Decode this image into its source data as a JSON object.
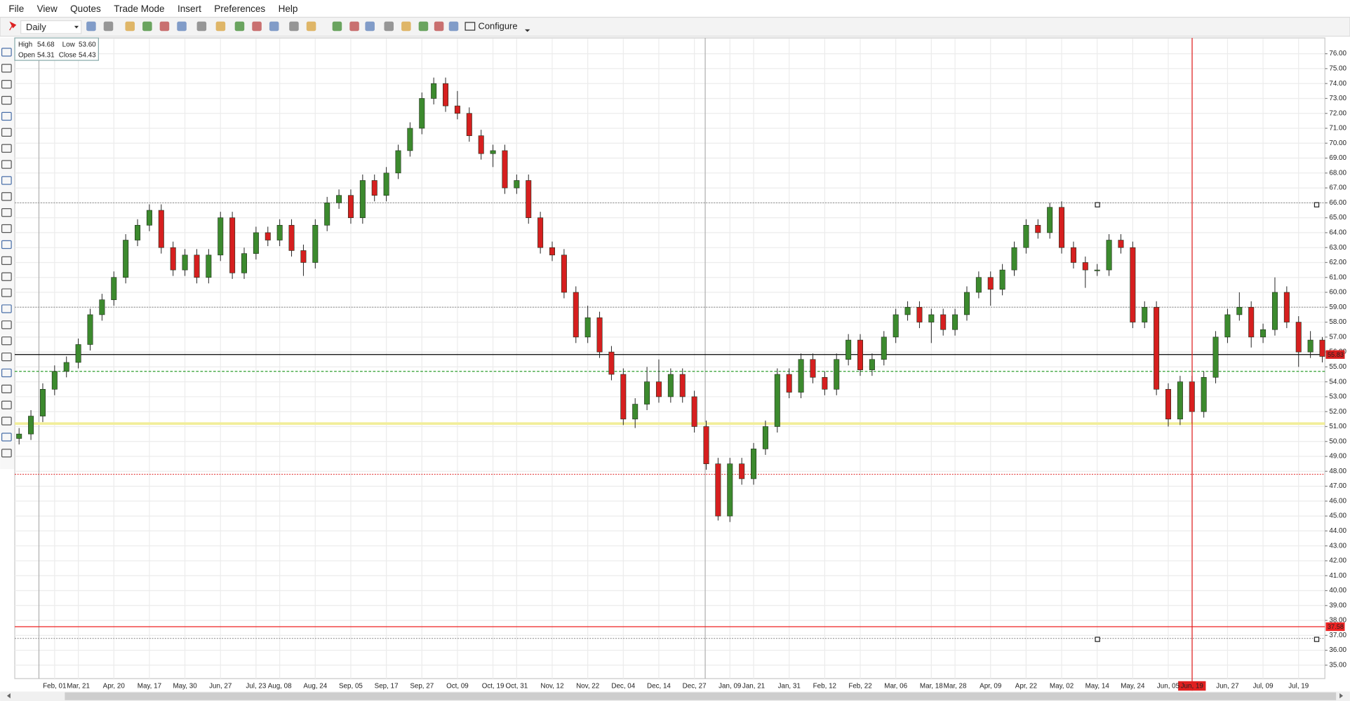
{
  "menu": [
    "File",
    "View",
    "Quotes",
    "Trade Mode",
    "Insert",
    "Preferences",
    "Help"
  ],
  "toolbar": {
    "timeframe": "Daily",
    "configure": "Configure"
  },
  "info_box": {
    "high_label": "High",
    "high": "54.68",
    "low_label": "Low",
    "low": "53.60",
    "open_label": "Open",
    "open": "54.31",
    "close_label": "Close",
    "close": "54.43"
  },
  "chart_data": {
    "type": "candlestick",
    "categories": [
      null,
      null,
      null,
      "Feb, 01",
      null,
      "Mar, 21",
      null,
      null,
      "Apr, 20",
      null,
      null,
      "May, 17",
      null,
      null,
      "May, 30",
      null,
      null,
      "Jun, 27",
      null,
      null,
      "Jul, 23",
      null,
      "Aug, 08",
      null,
      null,
      "Aug, 24",
      null,
      null,
      "Sep, 05",
      null,
      null,
      "Sep, 17",
      null,
      null,
      "Sep, 27",
      null,
      null,
      "Oct, 09",
      null,
      null,
      "Oct, 19",
      null,
      "Oct, 31",
      null,
      null,
      "Nov, 12",
      null,
      null,
      "Nov, 22",
      null,
      null,
      "Dec, 04",
      null,
      null,
      "Dec, 14",
      null,
      null,
      "Dec, 27",
      null,
      null,
      "Jan, 09",
      null,
      "Jan, 21",
      null,
      null,
      "Jan, 31",
      null,
      null,
      "Feb, 12",
      null,
      null,
      "Feb, 22",
      null,
      null,
      "Mar, 06",
      null,
      null,
      "Mar, 18",
      null,
      "Mar, 28",
      null,
      null,
      "Apr, 09",
      null,
      null,
      "Apr, 22",
      null,
      null,
      "May, 02",
      null,
      null,
      "May, 14",
      null,
      null,
      "May, 24",
      null,
      null,
      "Jun, 05",
      null,
      "Jun, 19",
      null,
      null,
      "Jun, 27",
      null,
      null,
      "Jul, 09",
      null,
      null,
      "Jul, 19",
      null,
      null
    ],
    "open": [
      50.2,
      50.5,
      51.7,
      53.5,
      54.7,
      55.3,
      56.5,
      58.5,
      59.5,
      61.0,
      63.5,
      64.5,
      65.5,
      63.0,
      61.5,
      62.5,
      61.0,
      62.5,
      65.0,
      61.3,
      62.6,
      64.0,
      63.5,
      64.5,
      62.8,
      62.0,
      64.5,
      66.0,
      66.5,
      65.0,
      67.5,
      66.5,
      68.0,
      69.5,
      71.0,
      73.0,
      74.0,
      72.5,
      72.0,
      70.5,
      69.3,
      69.5,
      67.0,
      67.5,
      65.0,
      63.0,
      62.5,
      60.0,
      57.0,
      58.3,
      56.0,
      54.5,
      51.5,
      52.5,
      54.0,
      53.0,
      54.5,
      53.0,
      51.0,
      48.5,
      45.0,
      48.5,
      47.5,
      49.5,
      51.0,
      54.5,
      53.3,
      55.5,
      54.3,
      53.5,
      55.5,
      56.8,
      54.8,
      55.5,
      57.0,
      58.5,
      59.0,
      58.0,
      58.5,
      57.5,
      58.5,
      60.0,
      61.0,
      60.2,
      61.5,
      63.0,
      64.5,
      64.0,
      65.7,
      63.0,
      62.0,
      61.5,
      61.5,
      63.5,
      63.0,
      58.0,
      59.0,
      53.5,
      51.5,
      54.0,
      52.0,
      54.3,
      57.0,
      58.5,
      59.0,
      57.0,
      57.5,
      60.0,
      58.0,
      56.0,
      56.8
    ],
    "high": [
      50.9,
      52.1,
      53.9,
      55.1,
      55.7,
      56.9,
      58.9,
      59.9,
      61.4,
      63.9,
      64.9,
      65.9,
      65.9,
      63.4,
      62.9,
      62.9,
      62.9,
      65.4,
      65.4,
      63.0,
      64.4,
      64.4,
      64.9,
      64.9,
      63.2,
      64.9,
      66.4,
      66.9,
      66.9,
      67.9,
      67.9,
      68.4,
      69.9,
      71.4,
      73.4,
      74.4,
      74.4,
      73.5,
      72.4,
      70.9,
      69.9,
      69.9,
      67.9,
      67.9,
      65.4,
      63.4,
      62.9,
      60.4,
      59.1,
      58.7,
      56.4,
      54.9,
      52.9,
      55.0,
      55.5,
      54.9,
      54.9,
      53.4,
      51.4,
      48.9,
      48.9,
      48.9,
      49.9,
      51.4,
      54.9,
      54.9,
      55.9,
      55.9,
      54.7,
      55.9,
      57.2,
      57.2,
      55.9,
      57.4,
      58.9,
      59.4,
      59.4,
      58.9,
      58.9,
      58.9,
      60.4,
      61.4,
      61.4,
      61.9,
      63.4,
      64.9,
      64.9,
      66.0,
      66.1,
      63.4,
      62.4,
      61.9,
      63.9,
      63.9,
      63.4,
      59.4,
      59.4,
      53.9,
      54.4,
      54.4,
      54.7,
      57.4,
      58.9,
      60.0,
      59.4,
      57.9,
      61.0,
      60.4,
      58.4,
      57.4,
      57.0
    ],
    "low": [
      49.8,
      50.1,
      51.3,
      53.1,
      54.3,
      54.9,
      56.1,
      58.1,
      59.1,
      60.6,
      63.1,
      64.1,
      62.6,
      61.1,
      61.1,
      60.6,
      60.6,
      62.1,
      60.9,
      60.9,
      62.2,
      63.1,
      63.1,
      62.4,
      61.1,
      61.6,
      64.1,
      65.6,
      64.6,
      64.6,
      66.1,
      66.1,
      67.6,
      69.1,
      70.6,
      72.6,
      72.1,
      71.6,
      70.1,
      68.9,
      68.4,
      66.6,
      66.6,
      64.6,
      62.6,
      62.1,
      59.6,
      56.6,
      56.6,
      55.6,
      54.1,
      51.1,
      50.9,
      52.1,
      52.6,
      52.6,
      52.6,
      50.6,
      48.1,
      44.7,
      44.6,
      47.1,
      47.1,
      49.1,
      50.6,
      52.9,
      52.9,
      53.9,
      53.1,
      53.1,
      55.1,
      54.4,
      54.4,
      55.1,
      56.6,
      58.1,
      57.6,
      56.6,
      57.1,
      57.1,
      58.1,
      59.6,
      59.1,
      59.8,
      61.1,
      62.6,
      63.6,
      63.6,
      62.6,
      61.6,
      60.3,
      61.1,
      61.1,
      62.6,
      57.6,
      57.6,
      53.1,
      51.0,
      51.1,
      51.2,
      51.6,
      53.9,
      56.6,
      58.1,
      56.3,
      56.6,
      57.1,
      57.6,
      55.0,
      55.6,
      55.3
    ],
    "close": [
      50.5,
      51.7,
      53.5,
      54.7,
      55.3,
      56.5,
      58.5,
      59.5,
      61.0,
      63.5,
      64.5,
      65.5,
      63.0,
      61.5,
      62.5,
      61.0,
      62.5,
      65.0,
      61.3,
      62.6,
      64.0,
      63.5,
      64.5,
      62.8,
      62.0,
      64.5,
      66.0,
      66.5,
      65.0,
      67.5,
      66.5,
      68.0,
      69.5,
      71.0,
      73.0,
      74.0,
      72.5,
      72.0,
      70.5,
      69.3,
      69.5,
      67.0,
      67.5,
      65.0,
      63.0,
      62.5,
      60.0,
      57.0,
      58.3,
      56.0,
      54.5,
      51.5,
      52.5,
      54.0,
      53.0,
      54.5,
      53.0,
      51.0,
      48.5,
      45.0,
      48.5,
      47.5,
      49.5,
      51.0,
      54.5,
      53.3,
      55.5,
      54.3,
      53.5,
      55.5,
      56.8,
      54.8,
      55.5,
      57.0,
      58.5,
      59.0,
      58.0,
      58.5,
      57.5,
      58.5,
      60.0,
      61.0,
      60.2,
      61.5,
      63.0,
      64.5,
      64.0,
      65.7,
      63.0,
      62.0,
      61.5,
      61.5,
      63.5,
      63.0,
      58.0,
      59.0,
      53.5,
      51.5,
      54.0,
      52.0,
      54.3,
      57.0,
      58.5,
      59.0,
      57.0,
      57.5,
      60.0,
      58.0,
      56.0,
      56.8,
      55.7
    ],
    "up_color": "#3c8a2e",
    "down_color": "#d61f1f",
    "ylim": [
      34.1,
      77.0
    ],
    "yticks": [
      {
        "value": 35,
        "label": "35.00"
      },
      {
        "value": 36,
        "label": "36.00"
      },
      {
        "value": 37,
        "label": "37.00"
      },
      {
        "value": 38,
        "label": "38.00"
      },
      {
        "value": 39,
        "label": "39.00"
      },
      {
        "value": 40,
        "label": "40.00"
      },
      {
        "value": 41,
        "label": "41.00"
      },
      {
        "value": 42,
        "label": "42.00"
      },
      {
        "value": 43,
        "label": "43.00"
      },
      {
        "value": 44,
        "label": "44.00"
      },
      {
        "value": 45,
        "label": "45.00"
      },
      {
        "value": 46,
        "label": "46.00"
      },
      {
        "value": 47,
        "label": "47.00"
      },
      {
        "value": 48,
        "label": "48.00"
      },
      {
        "value": 49,
        "label": "49.00"
      },
      {
        "value": 50,
        "label": "50.00"
      },
      {
        "value": 51,
        "label": "51.00"
      },
      {
        "value": 52,
        "label": "52.00"
      },
      {
        "value": 53,
        "label": "53.00"
      },
      {
        "value": 54,
        "label": "54.00"
      },
      {
        "value": 55,
        "label": "55.00"
      },
      {
        "value": 56,
        "label": "56.00"
      },
      {
        "value": 57,
        "label": "57.00"
      },
      {
        "value": 58,
        "label": "58.00"
      },
      {
        "value": 59,
        "label": "59.00"
      },
      {
        "value": 60,
        "label": "60.00"
      },
      {
        "value": 61,
        "label": "61.00"
      },
      {
        "value": 62,
        "label": "62.00"
      },
      {
        "value": 63,
        "label": "63.00"
      },
      {
        "value": 64,
        "label": "64.00"
      },
      {
        "value": 65,
        "label": "65.00"
      },
      {
        "value": 66,
        "label": "66.00"
      },
      {
        "value": 67,
        "label": "67.00"
      },
      {
        "value": 68,
        "label": "68.00"
      },
      {
        "value": 69,
        "label": "69.00"
      },
      {
        "value": 70,
        "label": "70.00"
      },
      {
        "value": 71,
        "label": "71.00"
      },
      {
        "value": 72,
        "label": "72.00"
      },
      {
        "value": 73,
        "label": "73.00"
      },
      {
        "value": 74,
        "label": "74.00"
      },
      {
        "value": 75,
        "label": "75.00"
      },
      {
        "value": 76,
        "label": "76.00"
      }
    ],
    "grid": true,
    "levels": [
      {
        "value": 66.0,
        "color": "#999999",
        "style": "dotted",
        "tag": false
      },
      {
        "value": 59.0,
        "color": "#999999",
        "style": "dotted",
        "tag": false
      },
      {
        "value": 55.83,
        "color": "#000000",
        "style": "solid",
        "tag": true
      },
      {
        "value": 54.7,
        "color": "#2e9e2e",
        "style": "dashed",
        "tag": false
      },
      {
        "value": 51.2,
        "color": "#f2ee9a",
        "style": "band",
        "tag": false
      },
      {
        "value": 47.8,
        "color": "#e03030",
        "style": "dotted",
        "tag": false
      },
      {
        "value": 37.58,
        "color": "#ee2222",
        "style": "solid",
        "tag": true
      },
      {
        "value": 36.8,
        "color": "#999999",
        "style": "dotted",
        "tag": false
      }
    ]
  }
}
